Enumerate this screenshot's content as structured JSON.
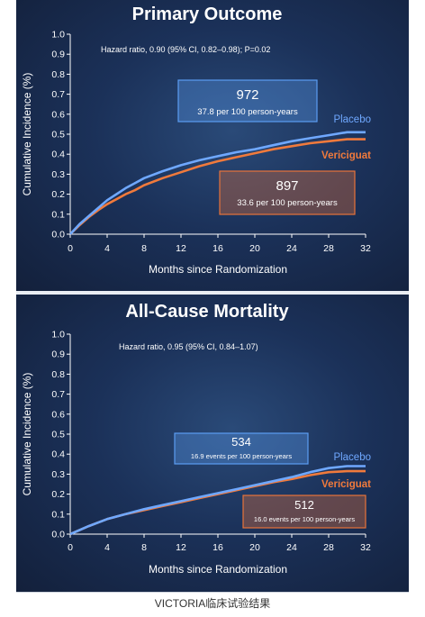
{
  "colors": {
    "placebo": "#6fa8ff",
    "vericiguat": "#f07a3c",
    "axis": "#ffffff",
    "placebo_box": "#5b9df2",
    "vericiguat_box": "#e8733a"
  },
  "caption": "VICTORIA临床试验结果",
  "chart_data": [
    {
      "type": "line",
      "title": "Primary Outcome",
      "subtitle": "Hazard ratio, 0.90 (95% CI, 0.82–0.98); P=0.02",
      "xlabel": "Months since Randomization",
      "ylabel": "Cumulative Incidence (%)",
      "xlim": [
        0,
        32
      ],
      "ylim": [
        0,
        1.0
      ],
      "xticks": [
        0,
        4,
        8,
        12,
        16,
        20,
        24,
        28,
        32
      ],
      "yticks": [
        0.0,
        0.1,
        0.2,
        0.3,
        0.4,
        0.5,
        0.6,
        0.7,
        0.8,
        0.9,
        1.0
      ],
      "ytick_labels": [
        "0.0",
        "0.1",
        "0.2",
        "0.3",
        "0.4",
        "0.5",
        "0.6",
        "0.7",
        "0.8",
        "0.9",
        "1.0"
      ],
      "grid": false,
      "series": [
        {
          "name": "Placebo",
          "color": "#6fa8ff",
          "x": [
            0,
            1,
            2,
            3,
            4,
            5,
            6,
            7,
            8,
            10,
            12,
            14,
            16,
            18,
            20,
            22,
            24,
            26,
            28,
            30,
            32
          ],
          "y": [
            0,
            0.05,
            0.09,
            0.13,
            0.17,
            0.2,
            0.23,
            0.255,
            0.28,
            0.315,
            0.345,
            0.37,
            0.39,
            0.41,
            0.425,
            0.445,
            0.465,
            0.48,
            0.495,
            0.51,
            0.51
          ],
          "count": "972",
          "rate": "37.8 per 100 person-years"
        },
        {
          "name": "Vericiguat",
          "color": "#f07a3c",
          "x": [
            0,
            1,
            2,
            3,
            4,
            5,
            6,
            7,
            8,
            10,
            12,
            14,
            16,
            18,
            20,
            22,
            24,
            26,
            28,
            30,
            32
          ],
          "y": [
            0,
            0.045,
            0.085,
            0.12,
            0.15,
            0.175,
            0.2,
            0.22,
            0.245,
            0.28,
            0.31,
            0.34,
            0.365,
            0.385,
            0.405,
            0.425,
            0.44,
            0.455,
            0.465,
            0.475,
            0.475
          ],
          "count": "897",
          "rate": "33.6 per 100 person-years"
        }
      ]
    },
    {
      "type": "line",
      "title": "All-Cause Mortality",
      "subtitle": "Hazard ratio, 0.95 (95% CI, 0.84–1.07)",
      "xlabel": "Months since Randomization",
      "ylabel": "Cumulative Incidence (%)",
      "xlim": [
        0,
        32
      ],
      "ylim": [
        0,
        1.0
      ],
      "xticks": [
        0,
        4,
        8,
        12,
        16,
        20,
        24,
        28,
        32
      ],
      "yticks": [
        0.0,
        0.1,
        0.2,
        0.3,
        0.4,
        0.5,
        0.6,
        0.7,
        0.8,
        0.9,
        1.0
      ],
      "ytick_labels": [
        "0.0",
        "0.1",
        "0.2",
        "0.3",
        "0.4",
        "0.5",
        "0.6",
        "0.7",
        "0.8",
        "0.9",
        "1.0"
      ],
      "grid": false,
      "series": [
        {
          "name": "Placebo",
          "color": "#6fa8ff",
          "x": [
            0,
            2,
            4,
            6,
            8,
            10,
            12,
            14,
            16,
            18,
            20,
            22,
            24,
            26,
            28,
            30,
            32
          ],
          "y": [
            0,
            0.04,
            0.075,
            0.1,
            0.125,
            0.145,
            0.165,
            0.185,
            0.205,
            0.225,
            0.245,
            0.265,
            0.285,
            0.31,
            0.33,
            0.34,
            0.34
          ],
          "count": "534",
          "rate": "16.9 events per 100 person-years"
        },
        {
          "name": "Vericiguat",
          "color": "#f07a3c",
          "x": [
            0,
            2,
            4,
            6,
            8,
            10,
            12,
            14,
            16,
            18,
            20,
            22,
            24,
            26,
            28,
            30,
            32
          ],
          "y": [
            0,
            0.04,
            0.075,
            0.1,
            0.12,
            0.14,
            0.16,
            0.18,
            0.2,
            0.22,
            0.24,
            0.26,
            0.275,
            0.295,
            0.31,
            0.315,
            0.315
          ],
          "count": "512",
          "rate": "16.0 events per 100 person-years"
        }
      ]
    }
  ]
}
